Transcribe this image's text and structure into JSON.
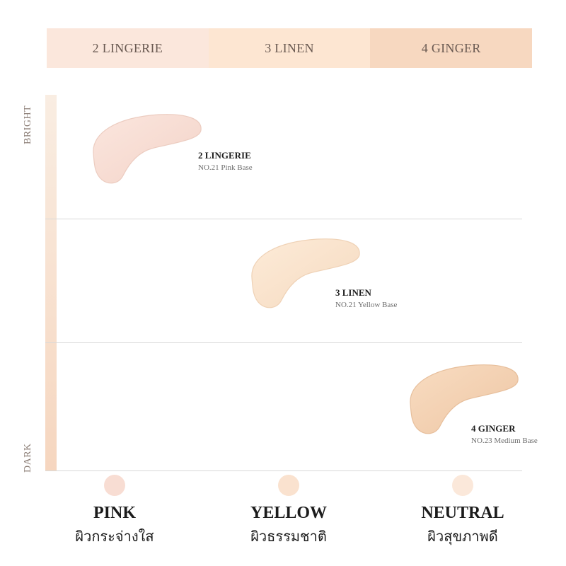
{
  "shade_tabs": [
    {
      "label": "2 LINGERIE",
      "color": "#fbe7dc"
    },
    {
      "label": "3 LINEN",
      "color": "#fde6d2"
    },
    {
      "label": "4 GINGER",
      "color": "#f7d8c0"
    }
  ],
  "axis": {
    "top_label": "BRIGHT",
    "bottom_label": "DARK"
  },
  "swatches": [
    {
      "name": "2 LINGERIE",
      "code": "NO.21 Pink Base",
      "color": "#f7dcd3"
    },
    {
      "name": "3 LINEN",
      "code": "NO.21 Yellow Base",
      "color": "#fbe3cc"
    },
    {
      "name": "4 GINGER",
      "code": "NO.23 Medium Base",
      "color": "#f3cfb0"
    }
  ],
  "tones": [
    {
      "title": "PINK",
      "subtitle": "ผิวกระจ่างใส",
      "dot_color": "#f8ddd3"
    },
    {
      "title": "YELLOW",
      "subtitle": "ผิวธรรมชาติ",
      "dot_color": "#fae2cf"
    },
    {
      "title": "NEUTRAL",
      "subtitle": "ผิวสุขภาพดี",
      "dot_color": "#fbe8da"
    }
  ]
}
